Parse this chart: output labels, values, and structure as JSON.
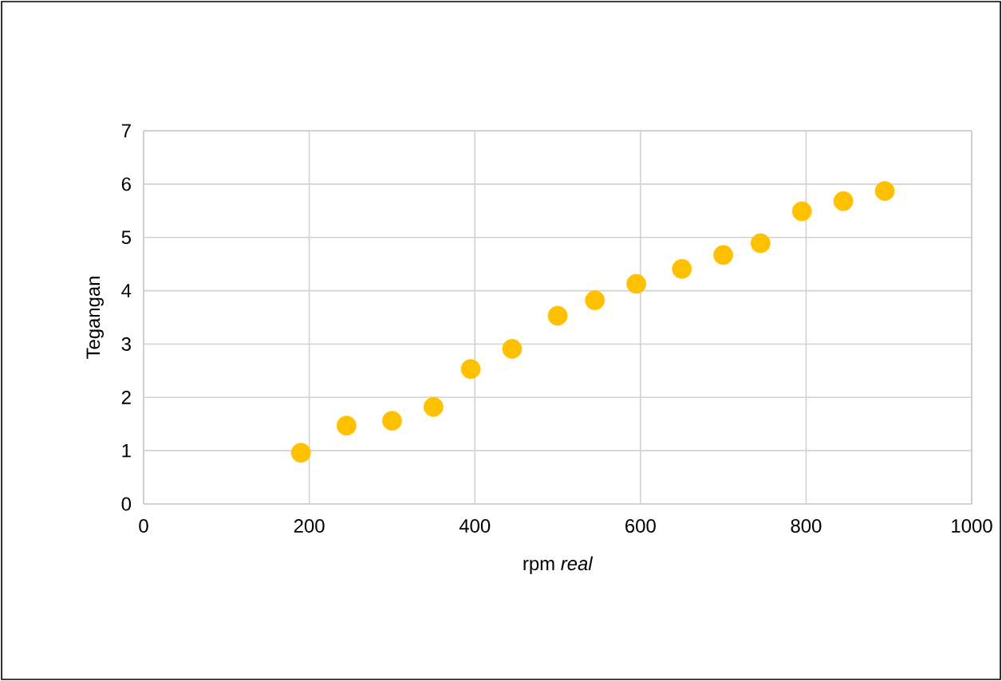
{
  "chart_data": {
    "type": "scatter",
    "xlabel": "rpm *real*",
    "ylabel": "Tegangan",
    "x": [
      190,
      245,
      300,
      350,
      395,
      445,
      500,
      545,
      595,
      650,
      700,
      745,
      795,
      845,
      895
    ],
    "values": [
      0.96,
      1.47,
      1.56,
      1.82,
      2.53,
      2.91,
      3.53,
      3.82,
      4.13,
      4.41,
      4.67,
      4.89,
      5.49,
      5.68,
      5.87
    ],
    "color": "#ffc000",
    "marker": "circle",
    "xlim": [
      0,
      1000
    ],
    "xticks": [
      0,
      200,
      400,
      600,
      800,
      1000
    ],
    "ylim": [
      0,
      7
    ],
    "yticks": [
      0,
      1,
      2,
      3,
      4,
      5,
      6,
      7
    ],
    "grid": true
  }
}
